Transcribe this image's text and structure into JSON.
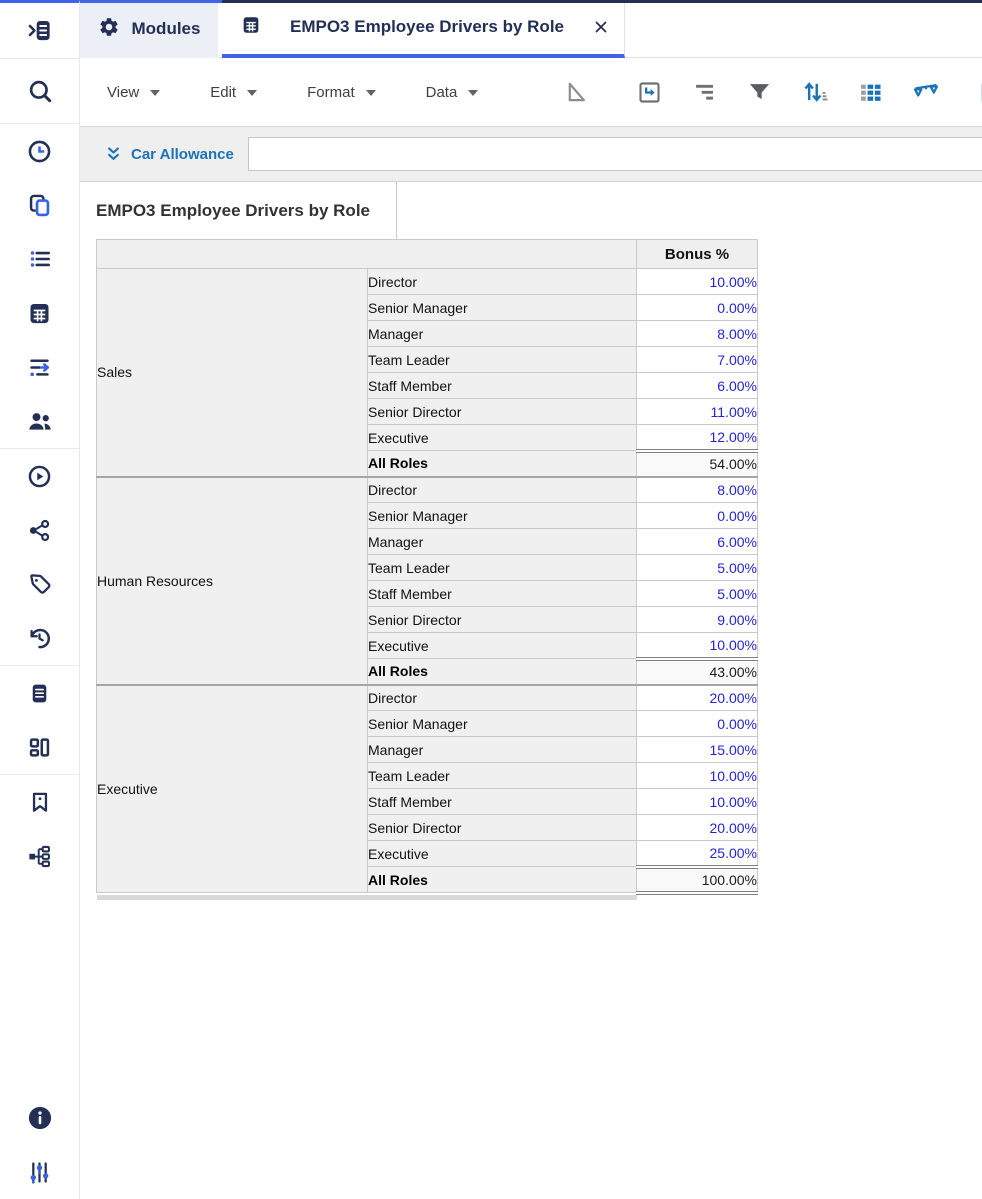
{
  "colors": {
    "accent_blue": "#4263e7",
    "navy": "#232f55",
    "action_blue": "#1b72b6",
    "cell_value_blue": "#2323d9",
    "label_cell_bg": "#f0f0f0"
  },
  "sidebar": {
    "icons": [
      "panel-expand",
      "search",
      "recent-clock",
      "copy-pages",
      "list",
      "modules-grid",
      "actions-lines",
      "users",
      "play-circle",
      "share-nodes",
      "tag",
      "history-clock",
      "notes-document",
      "dashboards",
      "bookmark",
      "source-models",
      "info",
      "settings-sliders"
    ]
  },
  "tabbar": {
    "tabs": [
      {
        "label": "Modules",
        "icon": "gear-icon",
        "active": false
      },
      {
        "label": "EMPO3 Employee Drivers by Role",
        "icon": "module-grid-icon",
        "active": true,
        "closable": true
      }
    ]
  },
  "menubar": {
    "menus": [
      {
        "label": "View"
      },
      {
        "label": "Edit"
      },
      {
        "label": "Format"
      },
      {
        "label": "Data"
      }
    ],
    "tools": [
      "select-mode",
      "pivot",
      "show-hide-levels",
      "filter",
      "sort",
      "conditional-formatting",
      "compare",
      "chart"
    ]
  },
  "formula_bar": {
    "label": "Car Allowance",
    "value": ""
  },
  "view": {
    "title": "EMPO3 Employee Drivers by Role"
  },
  "grid": {
    "corner_header": "",
    "value_header": "Bonus %",
    "total_label": "All Roles",
    "roles": [
      "Director",
      "Senior Manager",
      "Manager",
      "Team Leader",
      "Staff Member",
      "Senior Director",
      "Executive"
    ],
    "groups": [
      {
        "name": "Sales",
        "values": [
          "10.00%",
          "0.00%",
          "8.00%",
          "7.00%",
          "6.00%",
          "11.00%",
          "12.00%"
        ],
        "total": "54.00%"
      },
      {
        "name": "Human Resources",
        "values": [
          "8.00%",
          "0.00%",
          "6.00%",
          "5.00%",
          "5.00%",
          "9.00%",
          "10.00%"
        ],
        "total": "43.00%"
      },
      {
        "name": "Executive",
        "values": [
          "20.00%",
          "0.00%",
          "15.00%",
          "10.00%",
          "10.00%",
          "20.00%",
          "25.00%"
        ],
        "total": "100.00%"
      }
    ]
  }
}
